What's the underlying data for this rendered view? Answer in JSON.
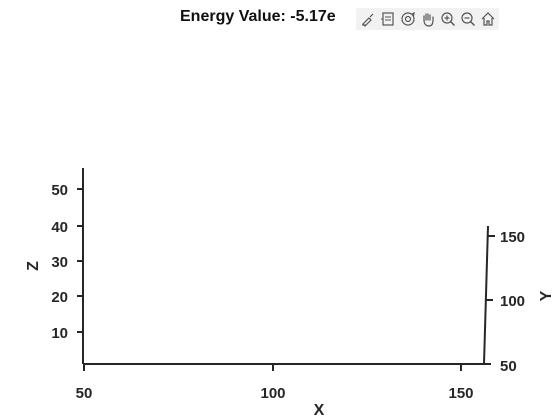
{
  "figure": {
    "title": "Energy Value: -5.17e"
  },
  "toolbar": {
    "icons": [
      "brush-icon",
      "legend-icon",
      "rotate-3d-icon",
      "pan-icon",
      "zoom-in-icon",
      "zoom-out-icon",
      "home-icon"
    ]
  },
  "axes": {
    "xlabel": "X",
    "ylabel": "Y",
    "zlabel": "Z",
    "x_ticks": [
      "50",
      "100",
      "150"
    ],
    "y_ticks": [
      "50",
      "100",
      "150"
    ],
    "z_ticks": [
      "10",
      "20",
      "30",
      "40",
      "50"
    ],
    "axis_color": "#262626"
  }
}
